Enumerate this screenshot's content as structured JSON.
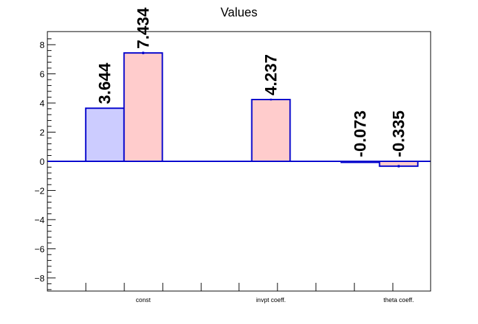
{
  "chart_data": {
    "type": "bar",
    "title": "Values",
    "categories": [
      "const",
      "invpt coeff.",
      "theta coeff."
    ],
    "series": [
      {
        "values": [
          3.644,
          null,
          -0.073
        ],
        "color": "#ccccff",
        "errors": [
          0,
          null,
          0
        ]
      },
      {
        "values": [
          7.434,
          4.237,
          -0.335
        ],
        "color": "#ffcccc",
        "errors": [
          0.08,
          0.06,
          0.08
        ]
      }
    ],
    "value_labels": [
      [
        "3.644",
        null,
        "-0.073"
      ],
      [
        "7.434",
        "4.237",
        "-0.335"
      ]
    ],
    "yticks": [
      -8,
      -6,
      -4,
      -2,
      0,
      2,
      4,
      6,
      8
    ],
    "ytick_labels": [
      "−8",
      "−6",
      "−4",
      "−2",
      "0",
      "2",
      "4",
      "6",
      "8"
    ],
    "ylim": [
      -8.9,
      8.9
    ],
    "grid": false,
    "outline_color": "#0000cc"
  }
}
